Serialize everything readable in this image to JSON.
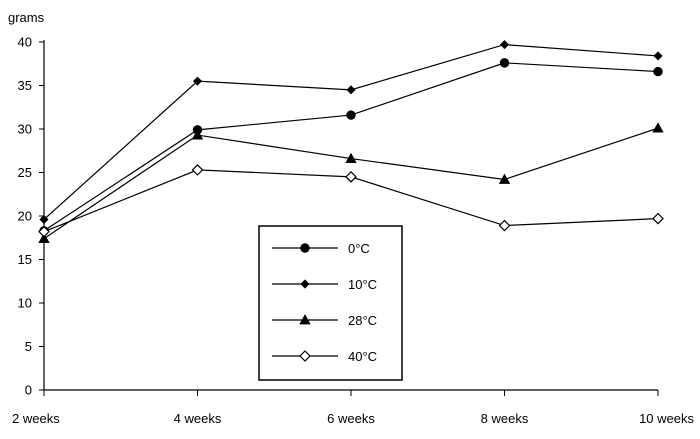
{
  "chart_data": {
    "type": "line",
    "title": "",
    "xlabel": "",
    "ylabel": "grams",
    "categories": [
      "2 weeks",
      "4 weeks",
      "6 weeks",
      "8 weeks",
      "10 weeks"
    ],
    "ylim": [
      0,
      40
    ],
    "yticks": [
      0,
      5,
      10,
      15,
      20,
      25,
      30,
      35,
      40
    ],
    "grid": false,
    "legend_position": "center-bottom",
    "series": [
      {
        "name": "0°C",
        "marker": "filled-circle",
        "values": [
          18.3,
          29.9,
          31.6,
          37.6,
          36.6
        ]
      },
      {
        "name": "10°C",
        "marker": "filled-diamond",
        "values": [
          19.6,
          35.5,
          34.5,
          39.7,
          38.4
        ]
      },
      {
        "name": "28°C",
        "marker": "filled-triangle",
        "values": [
          17.4,
          29.3,
          26.6,
          24.2,
          30.1
        ]
      },
      {
        "name": "40°C",
        "marker": "open-diamond",
        "values": [
          18.2,
          25.3,
          24.5,
          18.9,
          19.7
        ]
      }
    ]
  }
}
